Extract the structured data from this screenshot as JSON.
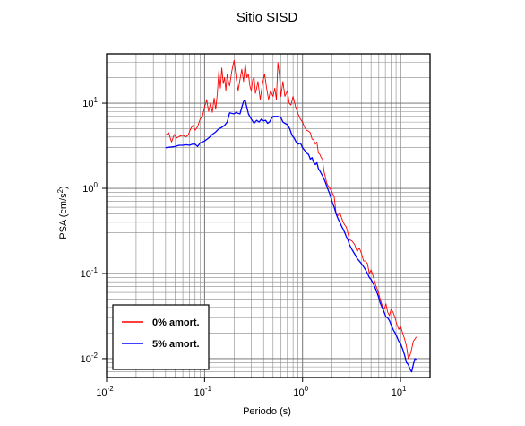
{
  "chart_data": {
    "type": "line",
    "title": "Sitio SISD",
    "xlabel": "Periodo (s)",
    "ylabel_main": "PSA (cm/s",
    "ylabel_sup": "2",
    "ylabel_close": ")",
    "xscale": "log",
    "yscale": "log",
    "xlim": [
      0.01,
      20
    ],
    "ylim": [
      0.006,
      38
    ],
    "grid": true,
    "legend_position": "bottom-left",
    "x_ticks": [
      {
        "value": 0.01,
        "base": "10",
        "exp": "-2"
      },
      {
        "value": 0.1,
        "base": "10",
        "exp": "-1"
      },
      {
        "value": 1,
        "base": "10",
        "exp": "0"
      },
      {
        "value": 10,
        "base": "10",
        "exp": "1"
      }
    ],
    "y_ticks": [
      {
        "value": 0.01,
        "base": "10",
        "exp": "-2"
      },
      {
        "value": 0.1,
        "base": "10",
        "exp": "-1"
      },
      {
        "value": 1,
        "base": "10",
        "exp": "0"
      },
      {
        "value": 10,
        "base": "10",
        "exp": "1"
      }
    ],
    "series": [
      {
        "name": "0% amort.",
        "color": "#ff0000",
        "points": [
          [
            0.04,
            4.2
          ],
          [
            0.043,
            4.5
          ],
          [
            0.046,
            3.5
          ],
          [
            0.049,
            4.3
          ],
          [
            0.052,
            3.9
          ],
          [
            0.056,
            4.1
          ],
          [
            0.06,
            4.2
          ],
          [
            0.064,
            4.0
          ],
          [
            0.068,
            4.2
          ],
          [
            0.072,
            5.0
          ],
          [
            0.076,
            5.5
          ],
          [
            0.08,
            4.8
          ],
          [
            0.085,
            5.3
          ],
          [
            0.09,
            6.5
          ],
          [
            0.095,
            7.0
          ],
          [
            0.1,
            9.0
          ],
          [
            0.105,
            11.0
          ],
          [
            0.11,
            8.0
          ],
          [
            0.115,
            10.0
          ],
          [
            0.12,
            7.8
          ],
          [
            0.125,
            11.5
          ],
          [
            0.13,
            8.5
          ],
          [
            0.135,
            13.0
          ],
          [
            0.14,
            24.0
          ],
          [
            0.145,
            15.0
          ],
          [
            0.15,
            26.0
          ],
          [
            0.155,
            17.0
          ],
          [
            0.16,
            20.0
          ],
          [
            0.165,
            14.0
          ],
          [
            0.17,
            22.0
          ],
          [
            0.175,
            18.0
          ],
          [
            0.18,
            16.0
          ],
          [
            0.19,
            24.0
          ],
          [
            0.2,
            32.0
          ],
          [
            0.21,
            20.0
          ],
          [
            0.22,
            14.0
          ],
          [
            0.23,
            19.0
          ],
          [
            0.24,
            25.0
          ],
          [
            0.25,
            18.0
          ],
          [
            0.26,
            29.0
          ],
          [
            0.27,
            20.0
          ],
          [
            0.28,
            22.0
          ],
          [
            0.29,
            16.0
          ],
          [
            0.3,
            14.0
          ],
          [
            0.31,
            19.0
          ],
          [
            0.32,
            20.0
          ],
          [
            0.33,
            13.0
          ],
          [
            0.34,
            15.0
          ],
          [
            0.35,
            18.0
          ],
          [
            0.37,
            11.0
          ],
          [
            0.39,
            17.0
          ],
          [
            0.41,
            22.0
          ],
          [
            0.43,
            15.0
          ],
          [
            0.45,
            11.0
          ],
          [
            0.47,
            14.0
          ],
          [
            0.5,
            12.0
          ],
          [
            0.52,
            15.0
          ],
          [
            0.54,
            11.0
          ],
          [
            0.56,
            30.0
          ],
          [
            0.58,
            22.0
          ],
          [
            0.6,
            12.0
          ],
          [
            0.63,
            18.0
          ],
          [
            0.66,
            12.0
          ],
          [
            0.7,
            14.0
          ],
          [
            0.73,
            10.0
          ],
          [
            0.76,
            9.5
          ],
          [
            0.8,
            12.0
          ],
          [
            0.85,
            9.0
          ],
          [
            0.9,
            7.5
          ],
          [
            0.95,
            6.5
          ],
          [
            1.0,
            6.0
          ],
          [
            1.05,
            5.2
          ],
          [
            1.1,
            4.8
          ],
          [
            1.15,
            4.7
          ],
          [
            1.2,
            4.5
          ],
          [
            1.25,
            3.8
          ],
          [
            1.3,
            3.7
          ],
          [
            1.35,
            3.3
          ],
          [
            1.4,
            3.5
          ],
          [
            1.45,
            2.6
          ],
          [
            1.5,
            2.5
          ],
          [
            1.55,
            2.3
          ],
          [
            1.6,
            2.2
          ],
          [
            1.65,
            1.6
          ],
          [
            1.7,
            1.4
          ],
          [
            1.75,
            1.2
          ],
          [
            1.8,
            1.1
          ],
          [
            1.9,
            1.0
          ],
          [
            2.0,
            0.9
          ],
          [
            2.1,
            0.8
          ],
          [
            2.2,
            0.5
          ],
          [
            2.3,
            0.48
          ],
          [
            2.4,
            0.52
          ],
          [
            2.5,
            0.45
          ],
          [
            2.6,
            0.4
          ],
          [
            2.7,
            0.37
          ],
          [
            2.8,
            0.35
          ],
          [
            2.9,
            0.3
          ],
          [
            3.0,
            0.25
          ],
          [
            3.2,
            0.24
          ],
          [
            3.4,
            0.22
          ],
          [
            3.6,
            0.18
          ],
          [
            3.8,
            0.2
          ],
          [
            4.0,
            0.17
          ],
          [
            4.2,
            0.14
          ],
          [
            4.4,
            0.14
          ],
          [
            4.6,
            0.13
          ],
          [
            4.8,
            0.1
          ],
          [
            5.0,
            0.11
          ],
          [
            5.3,
            0.09
          ],
          [
            5.6,
            0.072
          ],
          [
            5.9,
            0.062
          ],
          [
            6.2,
            0.05
          ],
          [
            6.5,
            0.042
          ],
          [
            6.8,
            0.038
          ],
          [
            7.1,
            0.044
          ],
          [
            7.4,
            0.035
          ],
          [
            7.7,
            0.032
          ],
          [
            8.0,
            0.038
          ],
          [
            8.4,
            0.035
          ],
          [
            8.8,
            0.03
          ],
          [
            9.2,
            0.025
          ],
          [
            9.6,
            0.022
          ],
          [
            10.0,
            0.024
          ],
          [
            10.5,
            0.02
          ],
          [
            11.0,
            0.017
          ],
          [
            11.5,
            0.014
          ],
          [
            12.0,
            0.01
          ],
          [
            12.5,
            0.011
          ],
          [
            13.0,
            0.013
          ],
          [
            13.5,
            0.016
          ],
          [
            14.0,
            0.017
          ],
          [
            14.5,
            0.018
          ]
        ]
      },
      {
        "name": "5% amort.",
        "color": "#0000ff",
        "points": [
          [
            0.04,
            3.0
          ],
          [
            0.045,
            3.05
          ],
          [
            0.05,
            3.1
          ],
          [
            0.055,
            3.2
          ],
          [
            0.06,
            3.2
          ],
          [
            0.065,
            3.25
          ],
          [
            0.07,
            3.2
          ],
          [
            0.075,
            3.3
          ],
          [
            0.08,
            3.3
          ],
          [
            0.085,
            3.1
          ],
          [
            0.09,
            3.4
          ],
          [
            0.095,
            3.5
          ],
          [
            0.1,
            3.6
          ],
          [
            0.11,
            3.9
          ],
          [
            0.12,
            4.3
          ],
          [
            0.13,
            4.6
          ],
          [
            0.14,
            5.0
          ],
          [
            0.15,
            5.2
          ],
          [
            0.16,
            5.5
          ],
          [
            0.17,
            6.0
          ],
          [
            0.18,
            7.7
          ],
          [
            0.19,
            7.6
          ],
          [
            0.2,
            7.5
          ],
          [
            0.21,
            7.8
          ],
          [
            0.22,
            7.6
          ],
          [
            0.23,
            7.5
          ],
          [
            0.24,
            9.0
          ],
          [
            0.25,
            10.5
          ],
          [
            0.26,
            10.8
          ],
          [
            0.27,
            9.0
          ],
          [
            0.28,
            7.5
          ],
          [
            0.3,
            6.5
          ],
          [
            0.32,
            5.8
          ],
          [
            0.34,
            6.3
          ],
          [
            0.36,
            6.0
          ],
          [
            0.38,
            6.5
          ],
          [
            0.4,
            6.2
          ],
          [
            0.42,
            6.3
          ],
          [
            0.44,
            5.8
          ],
          [
            0.46,
            6.0
          ],
          [
            0.48,
            6.6
          ],
          [
            0.5,
            7.0
          ],
          [
            0.53,
            7.0
          ],
          [
            0.56,
            7.0
          ],
          [
            0.6,
            6.8
          ],
          [
            0.63,
            6.0
          ],
          [
            0.66,
            5.8
          ],
          [
            0.7,
            5.6
          ],
          [
            0.74,
            5.0
          ],
          [
            0.78,
            4.2
          ],
          [
            0.82,
            3.9
          ],
          [
            0.86,
            3.5
          ],
          [
            0.9,
            3.3
          ],
          [
            0.95,
            3.4
          ],
          [
            1.0,
            3.0
          ],
          [
            1.05,
            2.8
          ],
          [
            1.1,
            2.6
          ],
          [
            1.15,
            2.5
          ],
          [
            1.2,
            2.2
          ],
          [
            1.25,
            2.3
          ],
          [
            1.3,
            2.0
          ],
          [
            1.35,
            1.9
          ],
          [
            1.4,
            2.0
          ],
          [
            1.45,
            1.7
          ],
          [
            1.5,
            1.6
          ],
          [
            1.6,
            1.4
          ],
          [
            1.7,
            1.2
          ],
          [
            1.8,
            1.0
          ],
          [
            1.9,
            0.85
          ],
          [
            2.0,
            0.7
          ],
          [
            2.1,
            0.6
          ],
          [
            2.2,
            0.5
          ],
          [
            2.3,
            0.44
          ],
          [
            2.4,
            0.4
          ],
          [
            2.5,
            0.36
          ],
          [
            2.6,
            0.33
          ],
          [
            2.7,
            0.3
          ],
          [
            2.8,
            0.27
          ],
          [
            2.9,
            0.25
          ],
          [
            3.0,
            0.22
          ],
          [
            3.2,
            0.19
          ],
          [
            3.4,
            0.17
          ],
          [
            3.6,
            0.15
          ],
          [
            3.8,
            0.14
          ],
          [
            4.0,
            0.13
          ],
          [
            4.2,
            0.12
          ],
          [
            4.4,
            0.11
          ],
          [
            4.6,
            0.1
          ],
          [
            4.8,
            0.09
          ],
          [
            5.0,
            0.085
          ],
          [
            5.3,
            0.075
          ],
          [
            5.6,
            0.065
          ],
          [
            5.9,
            0.055
          ],
          [
            6.2,
            0.045
          ],
          [
            6.5,
            0.04
          ],
          [
            6.8,
            0.035
          ],
          [
            7.1,
            0.031
          ],
          [
            7.4,
            0.03
          ],
          [
            7.7,
            0.028
          ],
          [
            8.0,
            0.025
          ],
          [
            8.4,
            0.022
          ],
          [
            8.8,
            0.02
          ],
          [
            9.2,
            0.018
          ],
          [
            9.6,
            0.016
          ],
          [
            10.0,
            0.015
          ],
          [
            10.5,
            0.013
          ],
          [
            11.0,
            0.011
          ],
          [
            11.5,
            0.009
          ],
          [
            12.0,
            0.0085
          ],
          [
            12.5,
            0.0075
          ],
          [
            13.0,
            0.007
          ],
          [
            13.5,
            0.0085
          ],
          [
            14.0,
            0.01
          ],
          [
            14.5,
            0.0098
          ]
        ]
      }
    ]
  }
}
